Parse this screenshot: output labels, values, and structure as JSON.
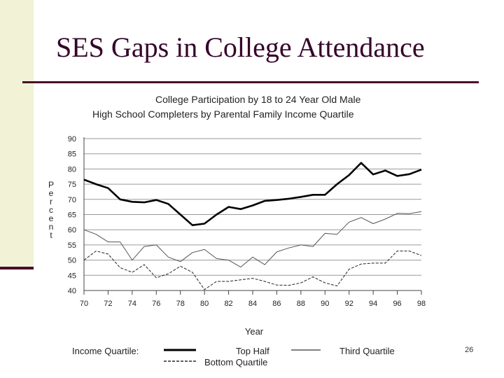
{
  "slide": {
    "title": "SES Gaps in College Attendance",
    "page_number": "26"
  },
  "chart_data": {
    "type": "line",
    "title": "College Participation by 18 to 24 Year Old Male",
    "subtitle": "High School Completers by Parental Family Income Quartile",
    "xlabel": "Year",
    "ylabel": "Percent",
    "x": [
      70,
      71,
      72,
      73,
      74,
      75,
      76,
      77,
      78,
      79,
      80,
      81,
      82,
      83,
      84,
      85,
      86,
      87,
      88,
      89,
      90,
      91,
      92,
      93,
      94,
      95,
      96,
      97,
      98
    ],
    "xticks": [
      "70",
      "72",
      "74",
      "76",
      "78",
      "80",
      "82",
      "84",
      "86",
      "88",
      "90",
      "92",
      "94",
      "96",
      "98"
    ],
    "yticks": [
      "40",
      "45",
      "50",
      "55",
      "60",
      "65",
      "70",
      "75",
      "80",
      "85",
      "90"
    ],
    "xlim": [
      70,
      98
    ],
    "ylim": [
      40,
      90
    ],
    "grid": true,
    "legend_title": "Income Quartile:",
    "series": [
      {
        "name": "Top Half",
        "style": "thick-solid",
        "values": [
          76.5,
          75,
          73.7,
          70,
          69.2,
          69,
          69.8,
          68.5,
          65,
          61.5,
          62,
          65,
          67.5,
          66.8,
          68,
          69.5,
          69.8,
          70.2,
          70.8,
          71.5,
          71.5,
          75,
          78,
          82,
          78.2,
          79.5,
          77.7,
          78.3,
          79.8
        ]
      },
      {
        "name": "Third Quartile",
        "style": "thin-solid",
        "values": [
          60,
          58.5,
          56,
          56,
          50,
          54.5,
          55,
          51,
          49.5,
          52.5,
          53.5,
          50.5,
          50,
          47.7,
          51,
          48.5,
          52.7,
          54,
          55,
          54.5,
          58.8,
          58.5,
          62.5,
          64,
          62,
          63.5,
          65.4,
          65.3,
          66
        ]
      },
      {
        "name": "Bottom Quartile",
        "style": "dashed",
        "values": [
          50,
          53,
          52,
          47.5,
          46,
          48.5,
          44.2,
          45.5,
          48,
          46,
          40.3,
          43,
          43,
          43.5,
          44,
          43,
          41.8,
          41.7,
          42.5,
          44.5,
          42.5,
          41.5,
          47,
          48.7,
          49,
          49,
          53,
          53,
          51.5
        ]
      }
    ]
  }
}
